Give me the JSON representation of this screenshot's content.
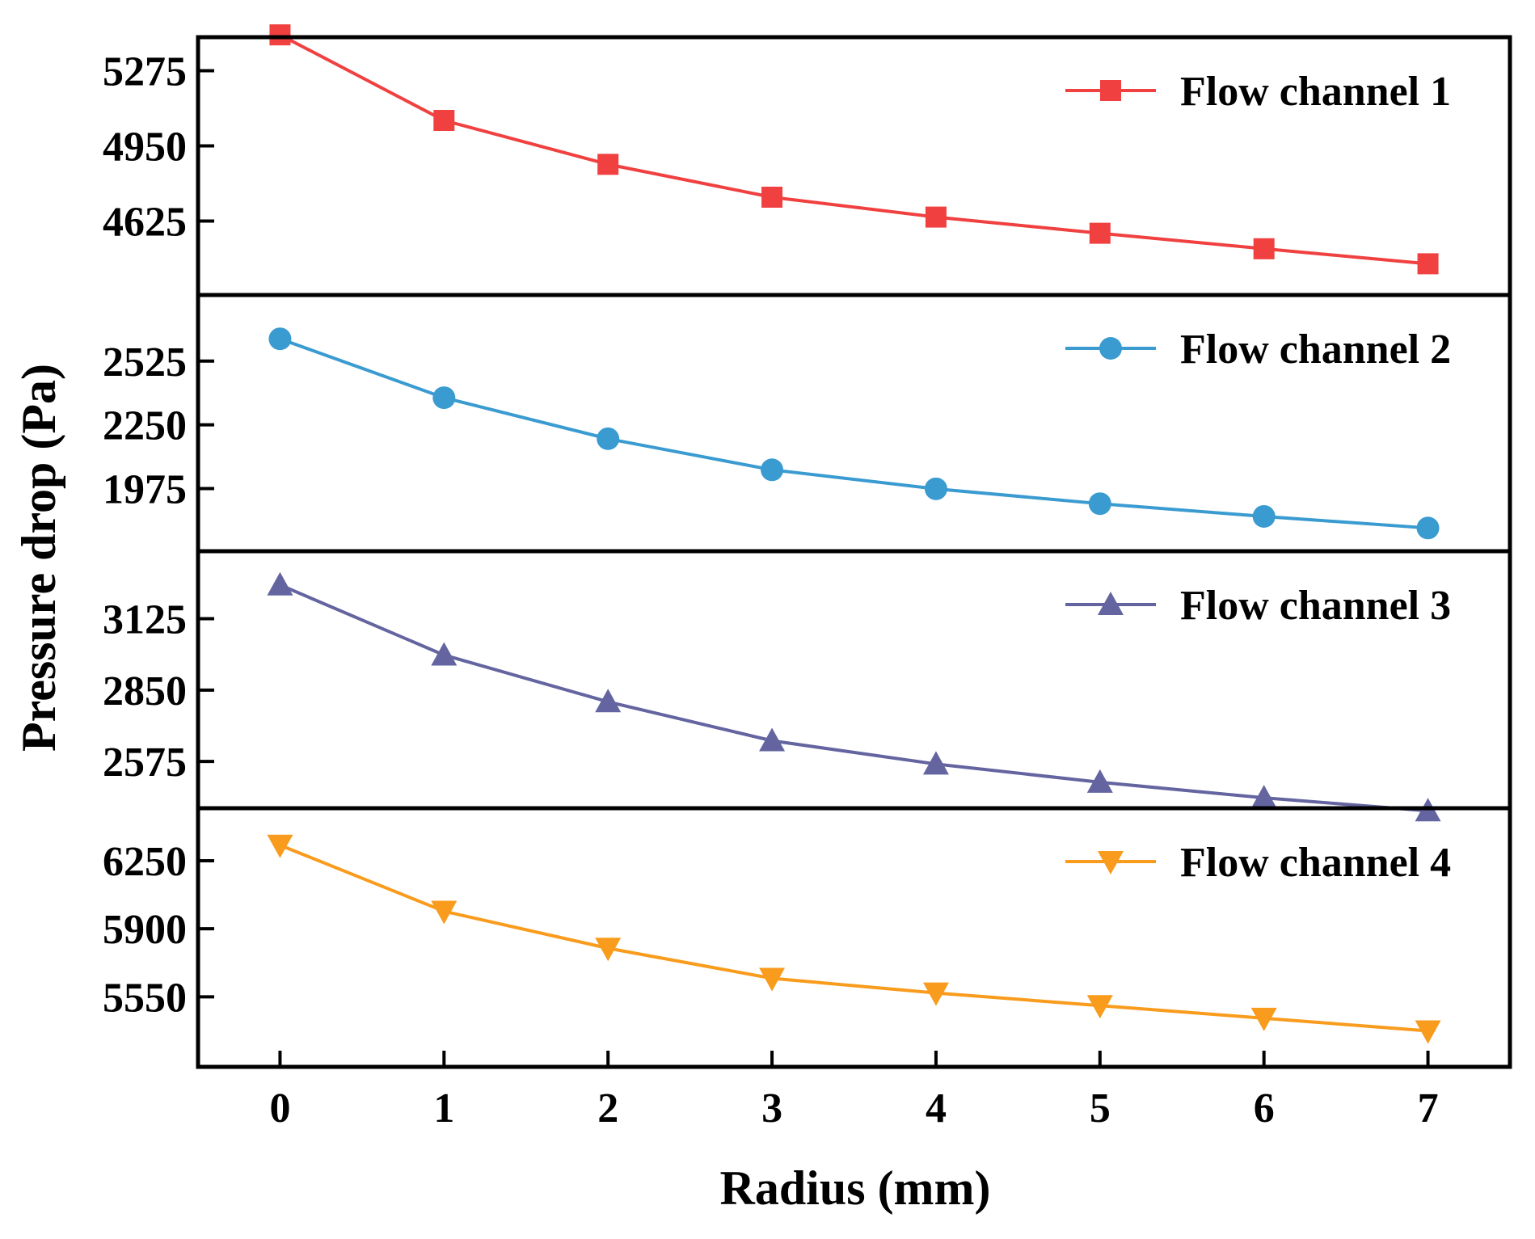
{
  "chart_data": {
    "type": "line",
    "layout": "stacked-panels",
    "xlabel": "Radius (mm)",
    "ylabel": "Pressure drop (Pa)",
    "x": [
      0,
      1,
      2,
      3,
      4,
      5,
      6,
      7
    ],
    "x_tick_labels": [
      "0",
      "1",
      "2",
      "3",
      "4",
      "5",
      "6",
      "7"
    ],
    "panels": [
      {
        "name": "Flow channel 1",
        "color": "#f04040",
        "marker": "square",
        "ylim": [
          4305,
          5420
        ],
        "yticks": [
          4625,
          4950,
          5275
        ],
        "y_tick_labels": [
          "4625",
          "4950",
          "5275"
        ],
        "values": [
          5430,
          5060,
          4870,
          4728,
          4642,
          4572,
          4505,
          4440
        ]
      },
      {
        "name": "Flow channel 2",
        "color": "#3a9bd1",
        "marker": "circle",
        "ylim": [
          1705,
          2810
        ],
        "yticks": [
          1975,
          2250,
          2525
        ],
        "y_tick_labels": [
          "1975",
          "2250",
          "2525"
        ],
        "values": [
          2621,
          2367,
          2190,
          2056,
          1974,
          1910,
          1855,
          1805
        ]
      },
      {
        "name": "Flow channel 3",
        "color": "#6464a0",
        "marker": "triangle-up",
        "ylim": [
          2395,
          3385
        ],
        "yticks": [
          2575,
          2850,
          3125
        ],
        "y_tick_labels": [
          "2575",
          "2850",
          "3125"
        ],
        "values": [
          3255,
          2985,
          2805,
          2655,
          2565,
          2495,
          2435,
          2385
        ]
      },
      {
        "name": "Flow channel 4",
        "color": "#f99b1c",
        "marker": "triangle-down",
        "ylim": [
          5190,
          6520
        ],
        "yticks": [
          5550,
          5900,
          6250
        ],
        "y_tick_labels": [
          "5550",
          "5900",
          "6250"
        ],
        "values": [
          6330,
          5990,
          5800,
          5645,
          5570,
          5505,
          5440,
          5375
        ]
      }
    ]
  }
}
